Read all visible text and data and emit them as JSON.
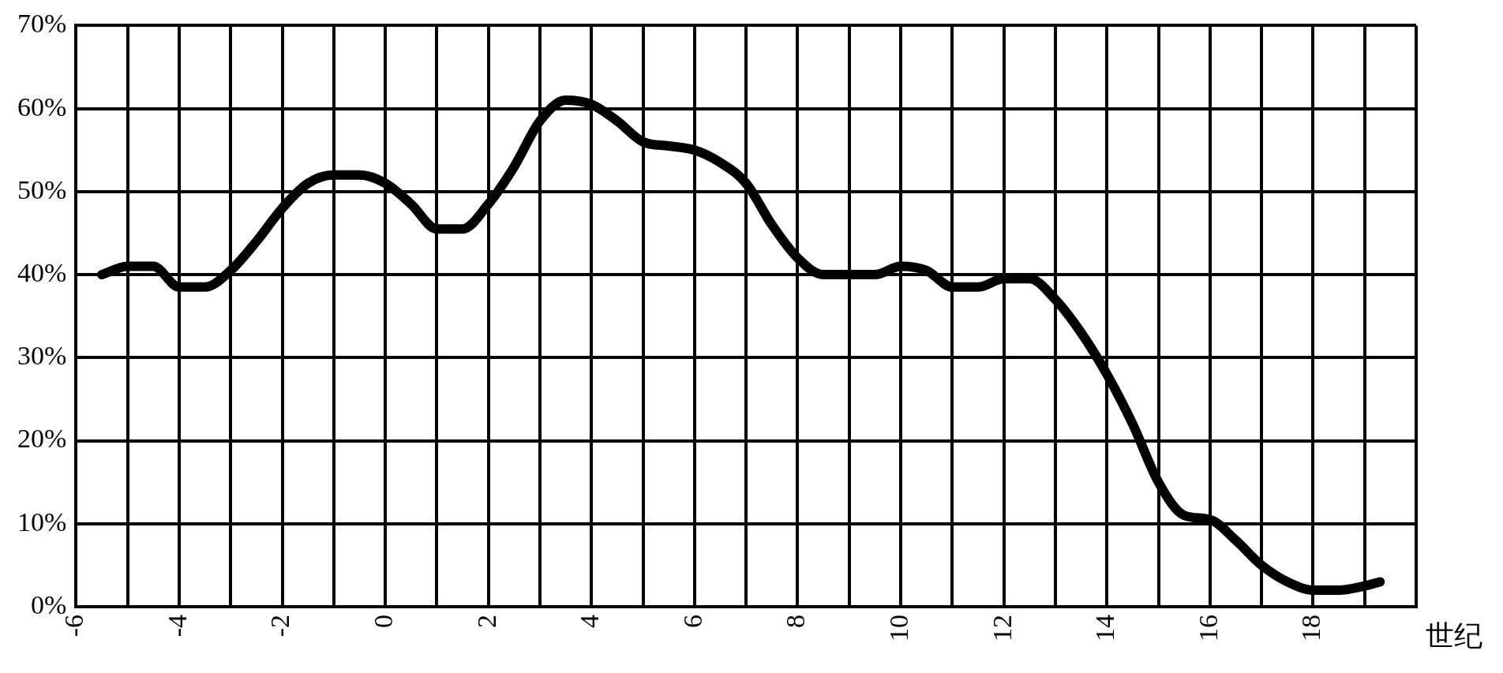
{
  "chart_data": {
    "type": "line",
    "xlabel": "世纪",
    "xlim": [
      -6,
      20
    ],
    "xticks": [
      -6,
      {
        "value": -5,
        "label": null
      },
      -4,
      {
        "value": -3,
        "label": null
      },
      -2,
      {
        "value": -1,
        "label": null
      },
      0,
      {
        "value": 1,
        "label": null
      },
      2,
      {
        "value": 3,
        "label": null
      },
      4,
      {
        "value": 5,
        "label": null
      },
      6,
      {
        "value": 7,
        "label": null
      },
      8,
      {
        "value": 9,
        "label": null
      },
      10,
      {
        "value": 11,
        "label": null
      },
      12,
      {
        "value": 13,
        "label": null
      },
      14,
      {
        "value": 15,
        "label": null
      },
      16,
      {
        "value": 17,
        "label": null
      },
      18,
      {
        "value": 19,
        "label": null
      },
      {
        "value": 20,
        "label": null
      }
    ],
    "ylim": [
      0,
      70
    ],
    "yticks": [
      {
        "value": 0,
        "label": "0%"
      },
      {
        "value": 10,
        "label": "10%"
      },
      {
        "value": 20,
        "label": "20%"
      },
      {
        "value": 30,
        "label": "30%"
      },
      {
        "value": 40,
        "label": "40%"
      },
      {
        "value": 50,
        "label": "50%"
      },
      {
        "value": 60,
        "label": "60%"
      },
      {
        "value": 70,
        "label": "70%"
      }
    ],
    "grid": true,
    "legend": false,
    "marker": "none",
    "line_style": "solid",
    "series": [
      {
        "color": "#000000",
        "x": [
          -5.5,
          -5,
          -4.5,
          -4,
          -3.5,
          -3,
          -2.5,
          -2,
          -1.5,
          -1,
          -0.5,
          0,
          0.5,
          1,
          1.5,
          2,
          2.5,
          3,
          3.5,
          4,
          4.5,
          5,
          5.5,
          6,
          6.5,
          7,
          7.5,
          8,
          8.5,
          9,
          9.5,
          10,
          10.5,
          11,
          11.5,
          12,
          12.5,
          13,
          13.5,
          14,
          14.5,
          15,
          15.5,
          16,
          16.5,
          17,
          17.5,
          18,
          18.5,
          19,
          19.3
        ],
        "values": [
          40,
          41,
          41,
          38.5,
          38.5,
          40.5,
          44,
          48,
          51,
          52,
          52,
          51,
          48.5,
          45.5,
          45.5,
          48.5,
          53,
          58.5,
          61,
          60.5,
          58.5,
          56,
          55.5,
          55,
          53.5,
          51,
          46,
          42,
          40,
          40,
          40,
          41,
          40.5,
          38.5,
          38.5,
          39.5,
          39.5,
          37,
          33,
          28,
          22,
          15,
          11,
          10.5,
          8,
          5,
          3,
          2,
          2,
          2.5,
          3
        ]
      }
    ]
  }
}
